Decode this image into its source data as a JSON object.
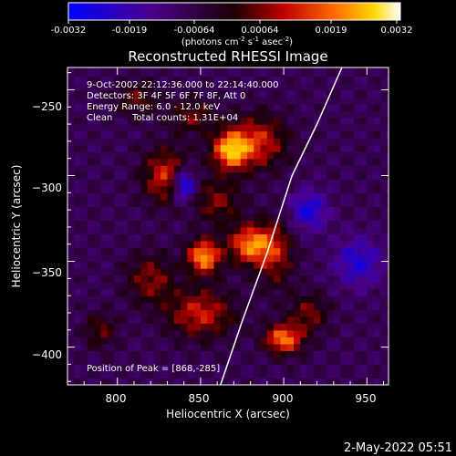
{
  "colorbar": {
    "ticks": [
      "-0.0032",
      "-0.0019",
      "-0.00064",
      "0.00064",
      "0.0019",
      "0.0032"
    ],
    "units_prefix": "(photons cm",
    "units_exp1": "-2",
    "units_mid": " s",
    "units_exp2": "-1",
    "units_mid2": " asec",
    "units_exp3": "-2",
    "units_suffix": ")"
  },
  "footer": {
    "timestamp": "2-May-2022 05:51"
  },
  "chart_data": {
    "type": "heatmap",
    "title": "Reconstructed RHESSI Image",
    "xlabel": "Heliocentric X (arcsec)",
    "ylabel": "Heliocentric Y (arcsec)",
    "xlim": [
      770,
      963
    ],
    "ylim": [
      -422,
      -237
    ],
    "x_ticks": [
      800,
      850,
      900,
      950
    ],
    "y_ticks": [
      -250,
      -300,
      -350,
      -400
    ],
    "x_tick_labels": [
      "800",
      "850",
      "900",
      "950"
    ],
    "y_tick_labels": [
      "−250",
      "−300",
      "−350",
      "−400"
    ],
    "colorbar_range": [
      -0.0032,
      0.0032
    ],
    "annotations": [
      "9-Oct-2002 22:12:36.000 to 22:14:40.000",
      "Detectors: 3F 4F 5F 6F 7F 8F, Att 0",
      "Energy Range: 6.0 - 12.0 keV",
      "Clean",
      "Total counts: 1.31E+04"
    ],
    "peak_label": "Position of Peak = [868,-285]",
    "peak": [
      868,
      -285
    ],
    "limb_curve": {
      "x": [
        862,
        875,
        890,
        905,
        920,
        935
      ],
      "y": [
        -422,
        -385,
        -345,
        -300,
        -270,
        -237
      ]
    },
    "emission_blobs": [
      {
        "x": 852,
        "y": -347,
        "sx": 7,
        "sy": 7,
        "amp": 0.0032
      },
      {
        "x": 868,
        "y": -285,
        "sx": 8,
        "sy": 8,
        "amp": 0.0031
      },
      {
        "x": 880,
        "y": -340,
        "sx": 9,
        "sy": 8,
        "amp": 0.0029
      },
      {
        "x": 900,
        "y": -395,
        "sx": 8,
        "sy": 6,
        "amp": 0.0029
      },
      {
        "x": 830,
        "y": -300,
        "sx": 10,
        "sy": 11,
        "amp": 0.0022
      },
      {
        "x": 850,
        "y": -380,
        "sx": 14,
        "sy": 10,
        "amp": 0.002
      },
      {
        "x": 885,
        "y": -280,
        "sx": 12,
        "sy": 11,
        "amp": 0.002
      },
      {
        "x": 820,
        "y": -360,
        "sx": 10,
        "sy": 10,
        "amp": 0.0015
      },
      {
        "x": 860,
        "y": -315,
        "sx": 10,
        "sy": 9,
        "amp": 0.0014
      },
      {
        "x": 895,
        "y": -345,
        "sx": 8,
        "sy": 14,
        "amp": 0.0016
      },
      {
        "x": 812,
        "y": -255,
        "sx": 9,
        "sy": 7,
        "amp": 0.0012
      },
      {
        "x": 915,
        "y": -380,
        "sx": 8,
        "sy": 8,
        "amp": 0.0014
      },
      {
        "x": 845,
        "y": -265,
        "sx": 9,
        "sy": 7,
        "amp": 0.0013
      },
      {
        "x": 790,
        "y": -390,
        "sx": 7,
        "sy": 7,
        "amp": 0.0012
      },
      {
        "x": 840,
        "y": -305,
        "sx": 5,
        "sy": 7,
        "amp": -0.003
      },
      {
        "x": 915,
        "y": -320,
        "sx": 8,
        "sy": 8,
        "amp": -0.0018
      },
      {
        "x": 945,
        "y": -350,
        "sx": 10,
        "sy": 10,
        "amp": -0.0016
      }
    ]
  }
}
